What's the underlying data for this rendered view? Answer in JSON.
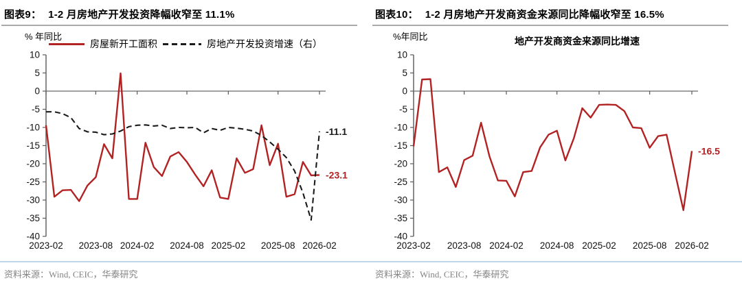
{
  "page": {
    "source_note": "资料来源：Wind, CEIC，华泰研究"
  },
  "chart_data": [
    {
      "type": "line",
      "figure_no": "图表9：",
      "title": "1-2 月房地产开发投资降幅收窄至 11.1%",
      "unit_label": "% 年同比",
      "legend_position": "top",
      "grid": false,
      "ylim": [
        -40,
        10
      ],
      "ytick_step": 5,
      "x_tick_labels": [
        "2023-02",
        "2023-08",
        "2024-02",
        "2024-08",
        "2025-02",
        "2025-08",
        "2026-02"
      ],
      "categories": [
        "2023-02",
        "2023-03",
        "2023-04",
        "2023-05",
        "2023-06",
        "2023-07",
        "2023-08",
        "2023-09",
        "2023-10",
        "2023-11",
        "2023-12",
        "2024-02",
        "2024-03",
        "2024-04",
        "2024-05",
        "2024-06",
        "2024-07",
        "2024-08",
        "2024-09",
        "2024-10",
        "2024-11",
        "2024-12",
        "2025-02",
        "2025-03",
        "2025-04",
        "2025-05",
        "2025-06",
        "2025-07",
        "2025-08",
        "2025-09",
        "2025-10",
        "2025-11",
        "2025-12",
        "2026-02"
      ],
      "series": [
        {
          "name": "房屋新开工面积",
          "style": "solid",
          "color": "#b22222",
          "axis": "left",
          "values": [
            -9.4,
            -29.1,
            -27.3,
            -27.2,
            -30.3,
            -26.0,
            -23.7,
            -14.6,
            -18.5,
            4.9,
            -29.7,
            -29.7,
            -14.2,
            -20.9,
            -23.4,
            -18.0,
            -16.8,
            -19.5,
            -23.0,
            -26.2,
            -21.8,
            -29.3,
            -29.7,
            -18.5,
            -22.5,
            -21.5,
            -9.4,
            -20.4,
            -14.5,
            -29.1,
            -28.4,
            -19.5,
            -23.2,
            -23.1
          ]
        },
        {
          "name": "房地产开发投资增速（右）",
          "style": "dashed",
          "color": "#1a1a1a",
          "axis": "right",
          "values": [
            -5.7,
            -5.7,
            -6.2,
            -7.3,
            -10.3,
            -11.2,
            -11.3,
            -12.0,
            -11.8,
            -11.0,
            -9.8,
            -9.4,
            -9.3,
            -9.6,
            -9.4,
            -10.3,
            -10.0,
            -10.1,
            -10.0,
            -11.5,
            -10.3,
            -10.8,
            -10.0,
            -10.2,
            -10.5,
            -11.0,
            -12.2,
            -14.0,
            -16.0,
            -18.3,
            -22.0,
            -28.0,
            -35.5,
            -11.1
          ]
        }
      ],
      "annotations": [
        {
          "text": "-11.1",
          "value": -11.1,
          "color": "#1a1a1a"
        },
        {
          "text": "-23.1",
          "value": -23.1,
          "color": "#b22222"
        }
      ]
    },
    {
      "type": "line",
      "figure_no": "图表10：",
      "title": "1-2 月房地产开发商资金来源同比降幅收窄至 16.5%",
      "unit_label": "%年同比",
      "inner_title": "地产开发商资金来源同比增速",
      "grid": false,
      "ylim": [
        -40,
        10
      ],
      "ytick_step": 5,
      "x_tick_labels": [
        "2023-02",
        "2023-08",
        "2024-02",
        "2024-08",
        "2025-02",
        "2025-08",
        "2026-02"
      ],
      "categories": [
        "2023-02",
        "2023-03",
        "2023-04",
        "2023-05",
        "2023-06",
        "2023-07",
        "2023-08",
        "2023-09",
        "2023-10",
        "2023-11",
        "2023-12",
        "2024-02",
        "2024-03",
        "2024-04",
        "2024-05",
        "2024-06",
        "2024-07",
        "2024-08",
        "2024-09",
        "2024-10",
        "2024-11",
        "2024-12",
        "2025-02",
        "2025-03",
        "2025-04",
        "2025-05",
        "2025-06",
        "2025-07",
        "2025-08",
        "2025-09",
        "2025-10",
        "2025-11",
        "2025-12",
        "2026-02"
      ],
      "series": [
        {
          "name": "地产开发商资金来源同比增速",
          "style": "solid",
          "color": "#b22222",
          "axis": "left",
          "values": [
            -15.2,
            3.2,
            3.3,
            -22.3,
            -21.0,
            -26.4,
            -19.0,
            -17.8,
            -8.7,
            -18.0,
            -24.6,
            -24.7,
            -29.0,
            -22.3,
            -22.0,
            -15.5,
            -12.0,
            -10.9,
            -19.1,
            -13.0,
            -4.7,
            -7.3,
            -3.8,
            -3.7,
            -3.8,
            -5.5,
            -10.0,
            -10.2,
            -15.6,
            -12.4,
            -12.0,
            -22.5,
            -32.8,
            -16.5
          ]
        }
      ],
      "annotations": [
        {
          "text": "-16.5",
          "value": -16.5,
          "color": "#b22222"
        }
      ]
    }
  ]
}
